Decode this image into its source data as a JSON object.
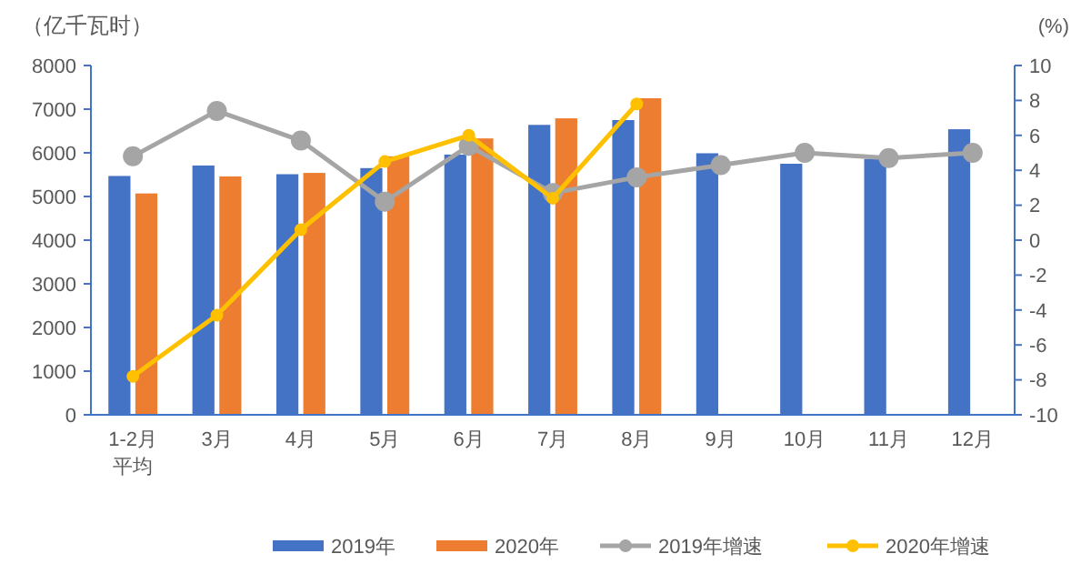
{
  "chart_data": {
    "type": "bar",
    "ylabel": "（亿千瓦时）",
    "y2label": "(%)",
    "categories": [
      "1-2月平均",
      "3月",
      "4月",
      "5月",
      "6月",
      "7月",
      "8月",
      "9月",
      "10月",
      "11月",
      "12月"
    ],
    "series": [
      {
        "name": "2019年",
        "color": "#4472c4",
        "values": [
          5470,
          5710,
          5510,
          5650,
          5960,
          6640,
          6750,
          5990,
          5750,
          5860,
          6540
        ]
      },
      {
        "name": "2020年",
        "color": "#ed7d31",
        "values": [
          5070,
          5460,
          5540,
          5920,
          6330,
          6790,
          7250,
          null,
          null,
          null,
          null
        ]
      },
      {
        "name": "2019年增速",
        "type": "line",
        "axis": "y2",
        "color": "#a5a5a5",
        "marker": "circle",
        "values": [
          4.8,
          7.4,
          5.7,
          2.2,
          5.4,
          2.7,
          3.6,
          4.3,
          5.0,
          4.7,
          5.0
        ]
      },
      {
        "name": "2020年增速",
        "type": "line",
        "axis": "y2",
        "color": "#ffc000",
        "marker": "circle",
        "values": [
          -7.8,
          -4.3,
          0.6,
          4.5,
          6.0,
          2.4,
          7.8,
          null,
          null,
          null,
          null
        ]
      }
    ],
    "ylim": [
      0,
      8000
    ],
    "yticks": [
      0,
      1000,
      2000,
      3000,
      4000,
      5000,
      6000,
      7000,
      8000
    ],
    "y2lim": [
      -10,
      10
    ],
    "y2ticks": [
      -10,
      -8,
      -6,
      -4,
      -2,
      0,
      2,
      4,
      6,
      8,
      10
    ],
    "grid": false,
    "legend": "bottom"
  }
}
